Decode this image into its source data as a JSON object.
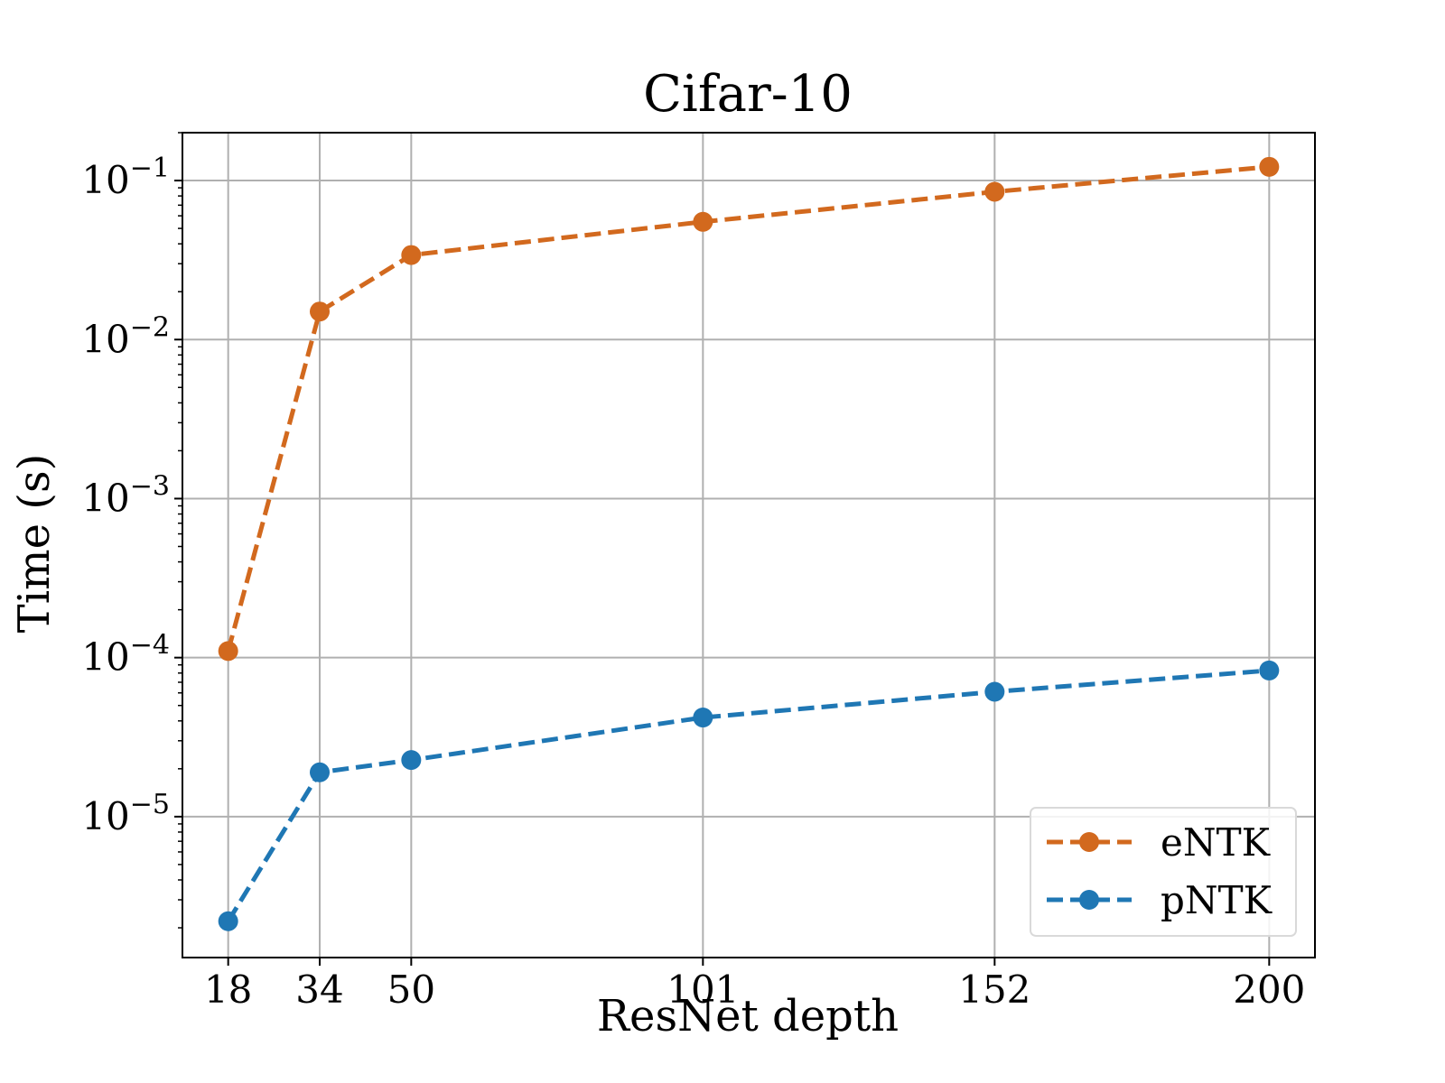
{
  "chart_data": {
    "type": "line",
    "title": "Cifar-10",
    "xlabel": "ResNet depth",
    "ylabel": "Time (s)",
    "yscale": "log",
    "ylim": [
      1.3e-06,
      0.2
    ],
    "xlim": [
      10,
      208
    ],
    "grid": true,
    "legend_position": "bottom-right",
    "x": [
      18,
      34,
      50,
      101,
      152,
      200
    ],
    "xtick_labels": [
      "18",
      "34",
      "50",
      "101",
      "152",
      "200"
    ],
    "ytick_values": [
      1e-05,
      0.0001,
      0.001,
      0.01,
      0.1
    ],
    "ytick_labels": [
      {
        "base": "10",
        "exp": "−5"
      },
      {
        "base": "10",
        "exp": "−4"
      },
      {
        "base": "10",
        "exp": "−3"
      },
      {
        "base": "10",
        "exp": "−2"
      },
      {
        "base": "10",
        "exp": "−1"
      }
    ],
    "series": [
      {
        "name": "eNTK",
        "color": "#d2691e",
        "linestyle": "dashed",
        "marker": "circle",
        "values": [
          0.00011,
          0.015,
          0.034,
          0.055,
          0.085,
          0.122
        ]
      },
      {
        "name": "pNTK",
        "color": "#1f77b4",
        "linestyle": "dashed",
        "marker": "circle",
        "values": [
          2.2e-06,
          1.9e-05,
          2.27e-05,
          4.2e-05,
          6.1e-05,
          8.3e-05
        ]
      }
    ]
  }
}
